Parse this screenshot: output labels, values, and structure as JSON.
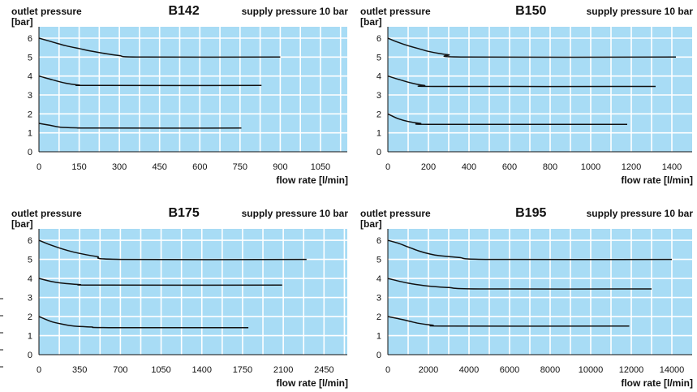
{
  "chart_data": [
    {
      "type": "line",
      "title": "B142",
      "ylabel_top": "outlet pressure",
      "yunit": "[bar]",
      "note": "supply pressure 10 bar",
      "xlabel": "flow rate [l/min]",
      "xlim": [
        0,
        1150
      ],
      "ylim": [
        0,
        6.6
      ],
      "xticks": [
        0,
        150,
        300,
        450,
        600,
        750,
        900,
        1050
      ],
      "yticks": [
        0,
        1,
        2,
        3,
        4,
        5,
        6
      ],
      "grid": true,
      "series": [
        {
          "points": [
            [
              0,
              6.0
            ],
            [
              50,
              5.8
            ],
            [
              100,
              5.6
            ],
            [
              150,
              5.45
            ],
            [
              200,
              5.3
            ],
            [
              250,
              5.18
            ],
            [
              300,
              5.08
            ],
            [
              380,
              5.0
            ],
            [
              900,
              5.0
            ]
          ]
        },
        {
          "points": [
            [
              0,
              4.0
            ],
            [
              50,
              3.8
            ],
            [
              100,
              3.62
            ],
            [
              150,
              3.52
            ],
            [
              200,
              3.5
            ],
            [
              830,
              3.5
            ]
          ]
        },
        {
          "points": [
            [
              0,
              1.5
            ],
            [
              40,
              1.4
            ],
            [
              80,
              1.3
            ],
            [
              150,
              1.26
            ],
            [
              200,
              1.25
            ],
            [
              755,
              1.25
            ]
          ]
        }
      ]
    },
    {
      "type": "line",
      "title": "B150",
      "ylabel_top": "outlet pressure",
      "yunit": "[bar]",
      "note": "supply pressure 10 bar",
      "xlabel": "flow rate [l/min]",
      "xlim": [
        0,
        1500
      ],
      "ylim": [
        0,
        6.6
      ],
      "xticks": [
        0,
        200,
        400,
        600,
        800,
        1000,
        1200,
        1400
      ],
      "yticks": [
        0,
        1,
        2,
        3,
        4,
        5,
        6
      ],
      "grid": true,
      "series": [
        {
          "points": [
            [
              0,
              6.0
            ],
            [
              50,
              5.78
            ],
            [
              100,
              5.6
            ],
            [
              150,
              5.45
            ],
            [
              200,
              5.3
            ],
            [
              250,
              5.2
            ],
            [
              300,
              5.12
            ],
            [
              380,
              5.0
            ],
            [
              1420,
              5.0
            ]
          ]
        },
        {
          "points": [
            [
              0,
              4.0
            ],
            [
              60,
              3.8
            ],
            [
              120,
              3.62
            ],
            [
              180,
              3.5
            ],
            [
              250,
              3.45
            ],
            [
              1320,
              3.45
            ]
          ]
        },
        {
          "points": [
            [
              0,
              2.0
            ],
            [
              50,
              1.75
            ],
            [
              100,
              1.6
            ],
            [
              160,
              1.5
            ],
            [
              230,
              1.45
            ],
            [
              1180,
              1.45
            ]
          ]
        }
      ]
    },
    {
      "type": "line",
      "title": "B175",
      "ylabel_top": "outlet pressure",
      "yunit": "[bar]",
      "note": "supply pressure 10 bar",
      "xlabel": "flow rate [l/min]",
      "xlim": [
        0,
        2650
      ],
      "ylim": [
        0,
        6.6
      ],
      "xticks": [
        0,
        350,
        700,
        1050,
        1400,
        1750,
        2100,
        2450
      ],
      "yticks": [
        0,
        1,
        2,
        3,
        4,
        5,
        6
      ],
      "grid": true,
      "series": [
        {
          "points": [
            [
              0,
              6.0
            ],
            [
              80,
              5.8
            ],
            [
              200,
              5.55
            ],
            [
              300,
              5.38
            ],
            [
              400,
              5.25
            ],
            [
              500,
              5.15
            ],
            [
              700,
              5.0
            ],
            [
              2300,
              5.0
            ]
          ]
        },
        {
          "points": [
            [
              0,
              4.0
            ],
            [
              100,
              3.85
            ],
            [
              200,
              3.75
            ],
            [
              350,
              3.68
            ],
            [
              500,
              3.65
            ],
            [
              2090,
              3.65
            ]
          ]
        },
        {
          "points": [
            [
              0,
              2.0
            ],
            [
              100,
              1.75
            ],
            [
              200,
              1.6
            ],
            [
              300,
              1.5
            ],
            [
              450,
              1.45
            ],
            [
              600,
              1.42
            ],
            [
              1800,
              1.42
            ]
          ]
        }
      ]
    },
    {
      "type": "line",
      "title": "B195",
      "ylabel_top": "outlet pressure",
      "yunit": "[bar]",
      "note": "supply pressure 10 bar",
      "xlabel": "flow rate [l/min]",
      "xlim": [
        0,
        15000
      ],
      "ylim": [
        0,
        6.6
      ],
      "xticks": [
        0,
        2000,
        4000,
        6000,
        8000,
        10000,
        12000,
        14000
      ],
      "yticks": [
        0,
        1,
        2,
        3,
        4,
        5,
        6
      ],
      "grid": true,
      "series": [
        {
          "points": [
            [
              0,
              6.0
            ],
            [
              500,
              5.85
            ],
            [
              1000,
              5.65
            ],
            [
              1500,
              5.45
            ],
            [
              2000,
              5.3
            ],
            [
              2500,
              5.2
            ],
            [
              3500,
              5.1
            ],
            [
              5000,
              5.0
            ],
            [
              14000,
              5.0
            ]
          ]
        },
        {
          "points": [
            [
              0,
              4.0
            ],
            [
              1000,
              3.75
            ],
            [
              2000,
              3.6
            ],
            [
              3000,
              3.52
            ],
            [
              4500,
              3.45
            ],
            [
              13000,
              3.45
            ]
          ]
        },
        {
          "points": [
            [
              0,
              2.0
            ],
            [
              700,
              1.85
            ],
            [
              1500,
              1.65
            ],
            [
              2200,
              1.55
            ],
            [
              3000,
              1.5
            ],
            [
              11900,
              1.5
            ]
          ]
        }
      ]
    }
  ]
}
